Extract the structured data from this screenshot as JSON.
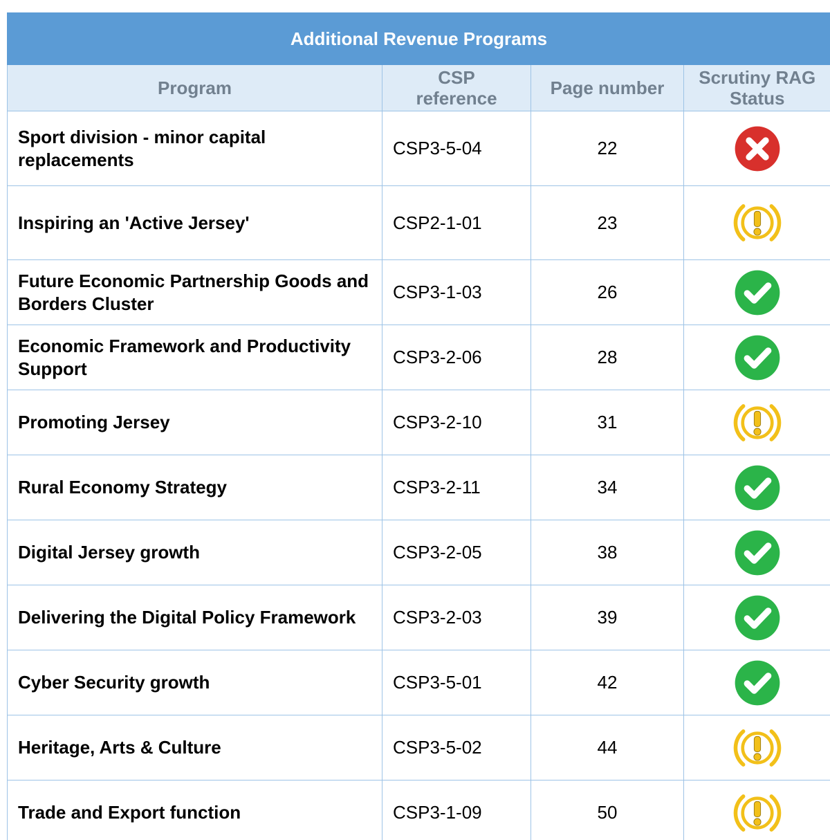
{
  "title": "Additional Revenue Programs",
  "table": {
    "columns": [
      "Program",
      "CSP reference",
      "Page number",
      "Scrutiny RAG Status"
    ],
    "rows": [
      [
        "Sport division - minor capital replacements",
        "CSP3-5-04",
        22
      ],
      [
        "Inspiring an 'Active Jersey'",
        "CSP2-1-01",
        23
      ],
      [
        "Future Economic Partnership Goods and Borders Cluster",
        "CSP3-1-03",
        26
      ],
      [
        "Economic Framework and Productivity Support",
        "CSP3-2-06",
        28
      ],
      [
        "Promoting Jersey",
        "CSP3-2-10",
        31
      ],
      [
        "Rural Economy Strategy",
        "CSP3-2-11",
        34
      ],
      [
        "Digital Jersey growth",
        "CSP3-2-05",
        38
      ],
      [
        "Delivering the Digital Policy Framework",
        "CSP3-2-03",
        39
      ],
      [
        "Cyber Security growth",
        "CSP3-5-01",
        42
      ],
      [
        "Heritage, Arts & Culture",
        "CSP3-5-02",
        44
      ],
      [
        "Trade and Export function",
        "CSP3-1-09",
        50
      ]
    ]
  }
}
